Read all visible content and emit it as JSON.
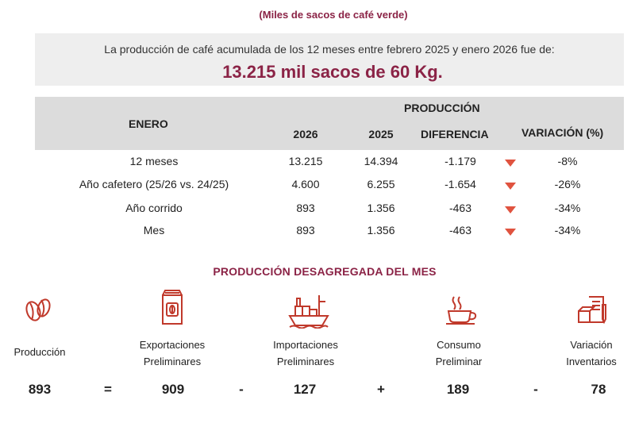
{
  "subtitle": "(Miles de sacos de café verde)",
  "summary": {
    "text": "La producción de café acumulada de los 12 meses entre febrero 2025 y enero 2026 fue de:",
    "value": "13.215 mil sacos de 60 Kg."
  },
  "table": {
    "month_header": "ENERO",
    "group_header": "PRODUCCIÓN",
    "columns": [
      "2026",
      "2025",
      "DIFERENCIA",
      "VARIACIÓN (%)"
    ],
    "rows": [
      {
        "label": "12 meses",
        "y2026": "13.215",
        "y2025": "14.394",
        "diff": "-1.179",
        "trend": "down",
        "var": "-8%"
      },
      {
        "label": "Año cafetero (25/26 vs. 24/25)",
        "y2026": "4.600",
        "y2025": "6.255",
        "diff": "-1.654",
        "trend": "down",
        "var": "-26%"
      },
      {
        "label": "Año corrido",
        "y2026": "893",
        "y2025": "1.356",
        "diff": "-463",
        "trend": "down",
        "var": "-34%"
      },
      {
        "label": "Mes",
        "y2026": "893",
        "y2025": "1.356",
        "diff": "-463",
        "trend": "down",
        "var": "-34%"
      }
    ],
    "trend_color": "#e0533f"
  },
  "breakdown": {
    "title": "PRODUCCIÓN DESAGREGADA DEL MES",
    "items": [
      {
        "icon": "coffee-beans-icon",
        "label": "Producción",
        "value": "893"
      },
      {
        "icon": "coffee-bag-icon",
        "label_1": "Exportaciones",
        "label_2": "Preliminares",
        "value": "909"
      },
      {
        "icon": "cargo-ship-icon",
        "label_1": "Importaciones",
        "label_2": "Preliminares",
        "value": "127"
      },
      {
        "icon": "coffee-cup-icon",
        "label_1": "Consumo",
        "label_2": "Preliminar",
        "value": "189"
      },
      {
        "icon": "inventory-icon",
        "label_1": "Variación",
        "label_2": "Inventarios",
        "value": "78"
      }
    ],
    "operators": [
      "=",
      "-",
      "+",
      "-"
    ]
  },
  "colors": {
    "accent": "#8b2346",
    "header_bg": "#dcdcdc",
    "summary_bg": "#eeeeee",
    "icon": "#c0392b"
  }
}
